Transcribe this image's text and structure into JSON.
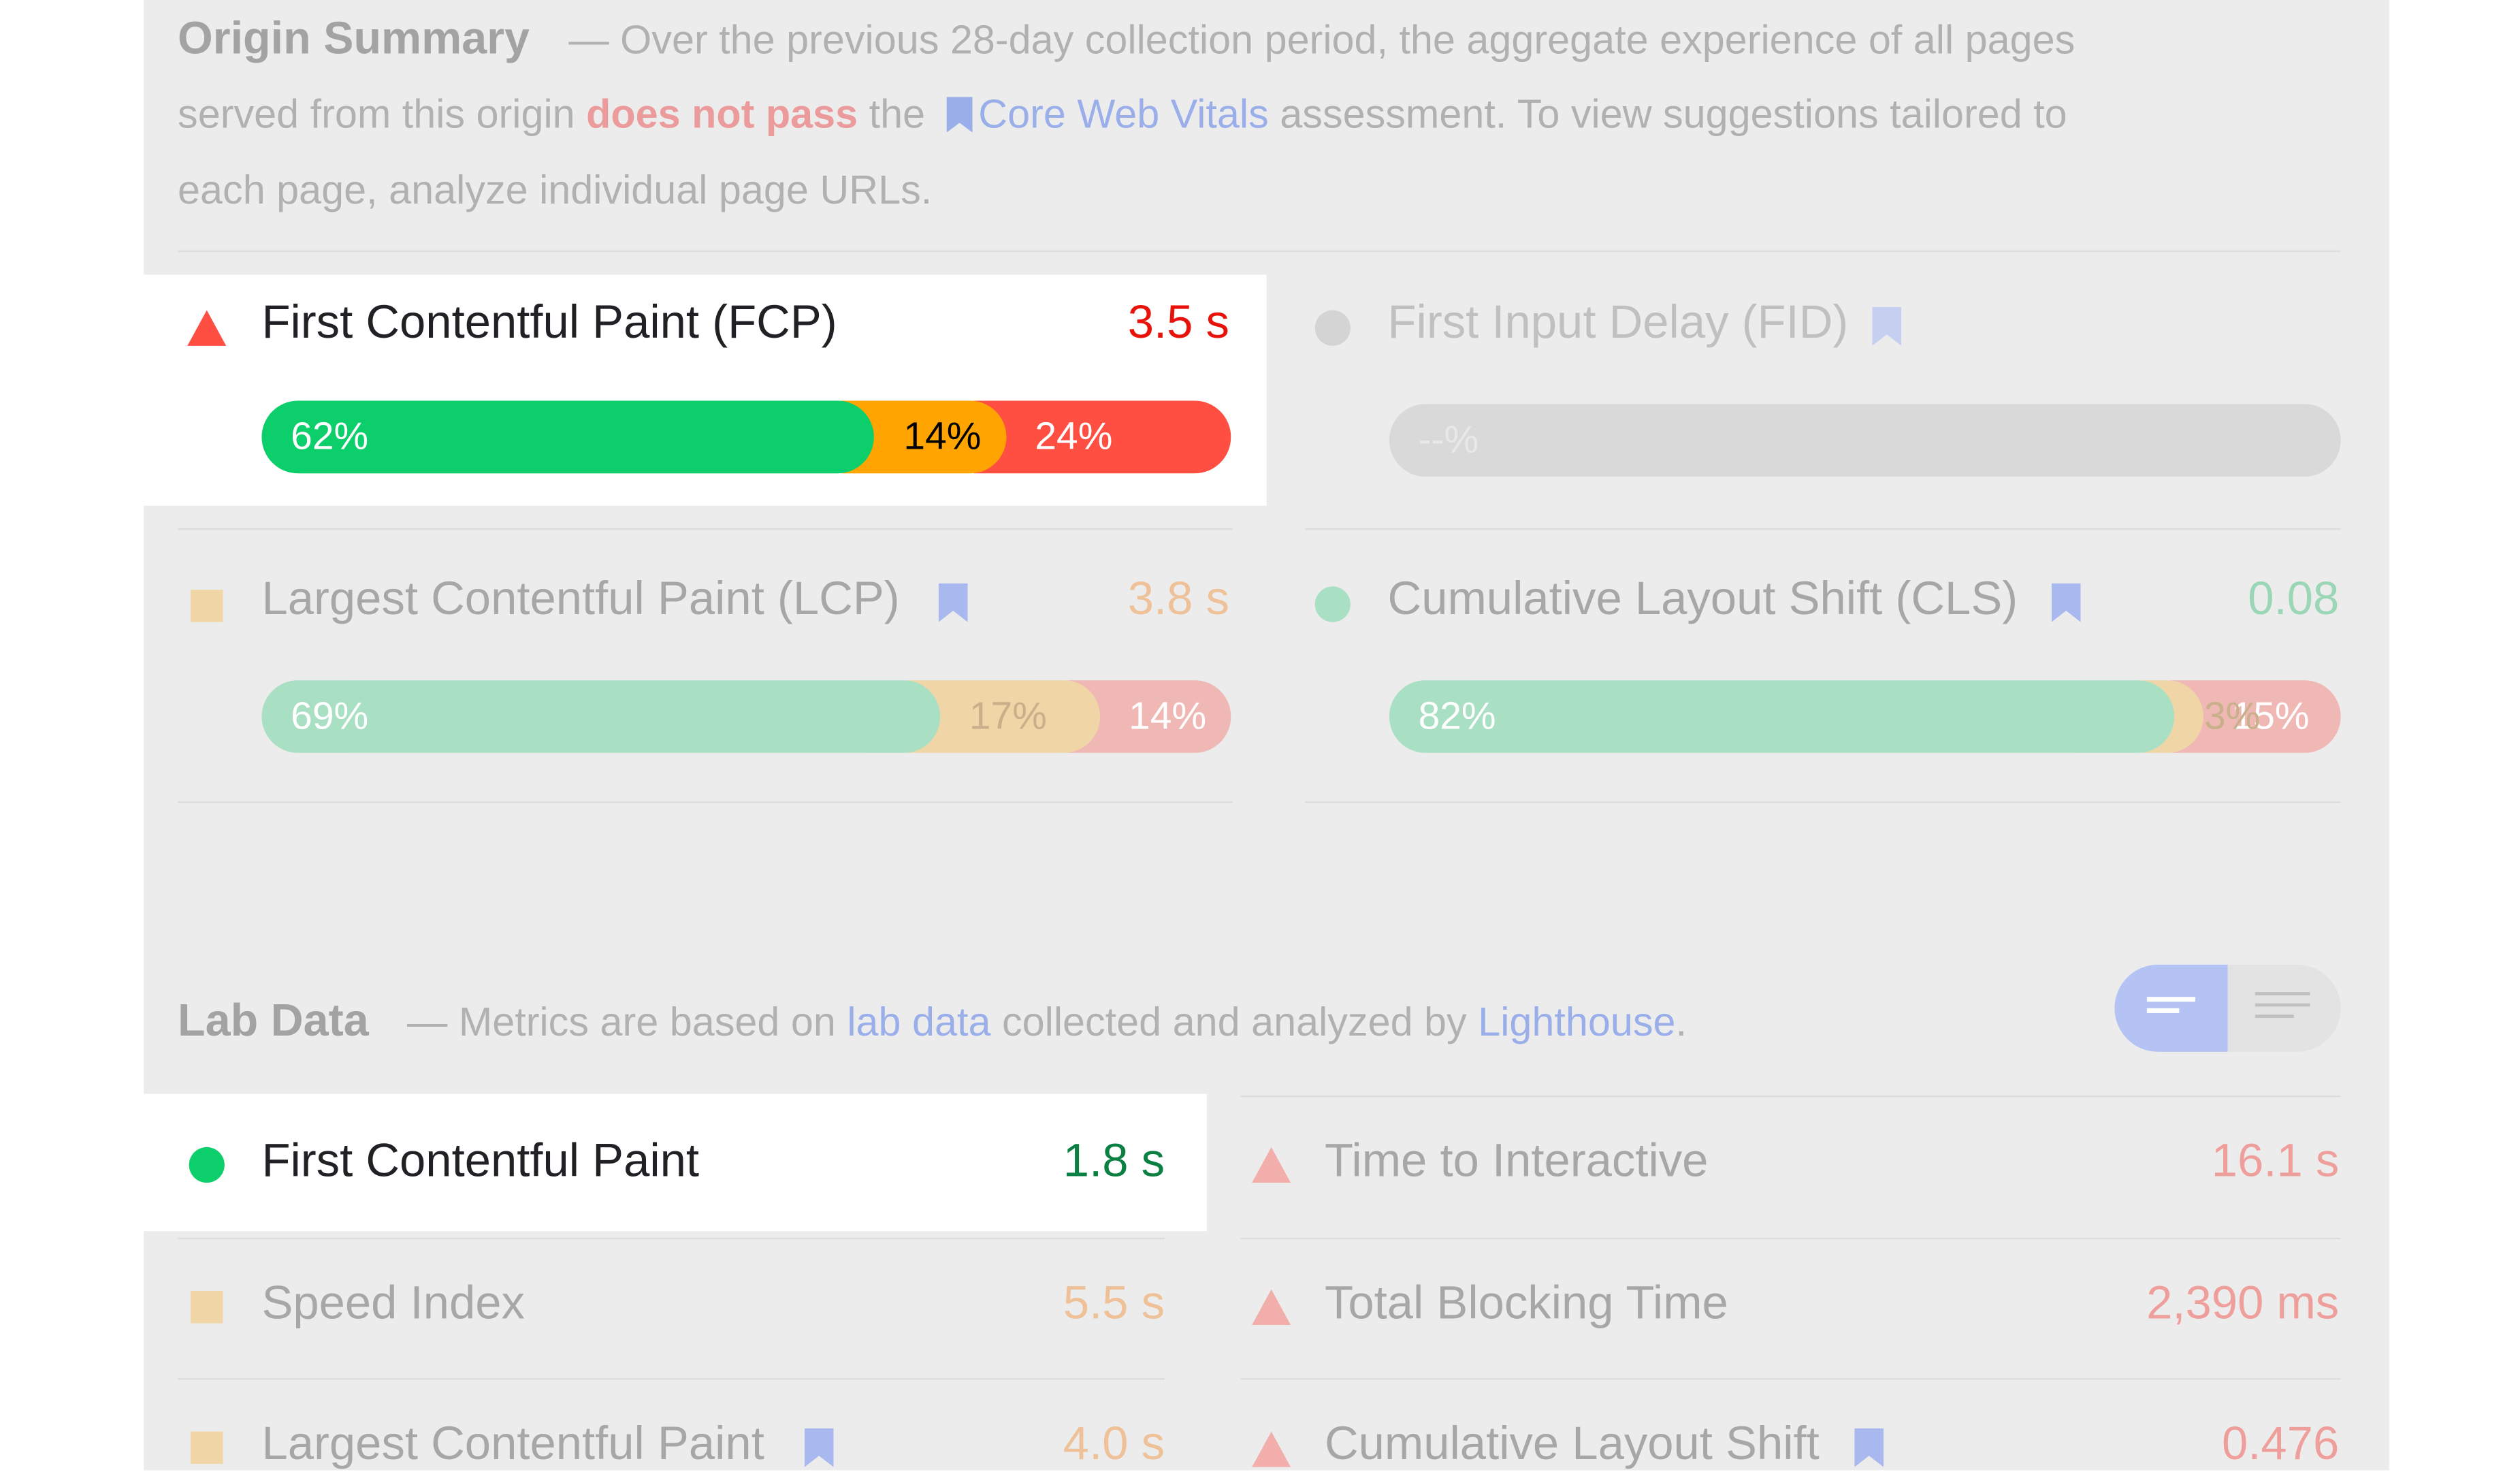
{
  "colors": {
    "pass": "#0cce6b",
    "average": "#ffa400",
    "fail": "#ff4e42",
    "fail_text": "#e8120b",
    "pass_text": "#0b8043",
    "link": "#9aaeea"
  },
  "origin_summary": {
    "title": "Origin Summary",
    "text_1": "— Over the previous 28-day collection period, the aggregate experience of all pages",
    "text_2a": "served from this origin",
    "fail_phrase": "does not pass",
    "text_2b": "the",
    "link_label": "Core Web Vitals",
    "text_2c": "assessment. To view suggestions tailored to",
    "text_3": "each page, analyze individual page URLs.",
    "metrics": [
      {
        "name": "First Contentful Paint (FCP)",
        "value": "3.5 s",
        "status": "fail",
        "icon": "warning-triangle-icon",
        "bar": [
          {
            "label": "62%",
            "kind": "good",
            "fraction": 0.62
          },
          {
            "label": "14%",
            "kind": "average",
            "fraction": 0.14
          },
          {
            "label": "24%",
            "kind": "poor",
            "fraction": 0.24
          }
        ]
      },
      {
        "name": "First Input Delay (FID)",
        "value": "",
        "status": "none",
        "icon": "circle-icon",
        "bar": [
          {
            "label": "--%",
            "kind": "empty",
            "fraction": 1.0
          }
        ]
      },
      {
        "name": "Largest Contentful Paint (LCP)",
        "value": "3.8 s",
        "status": "average",
        "icon": "square-icon",
        "bar": [
          {
            "label": "69%",
            "kind": "good",
            "fraction": 0.69
          },
          {
            "label": "17%",
            "kind": "average",
            "fraction": 0.17
          },
          {
            "label": "14%",
            "kind": "poor",
            "fraction": 0.14
          }
        ]
      },
      {
        "name": "Cumulative Layout Shift (CLS)",
        "value": "0.08",
        "status": "pass",
        "icon": "circle-icon",
        "bar": [
          {
            "label": "82%",
            "kind": "good",
            "fraction": 0.82
          },
          {
            "label": "3%",
            "kind": "average",
            "fraction": 0.03
          },
          {
            "label": "15%",
            "kind": "poor",
            "fraction": 0.15
          }
        ]
      }
    ]
  },
  "lab_data": {
    "title": "Lab Data",
    "text_1": "— Metrics are based on",
    "link_1": "lab data",
    "text_2": "collected and analyzed by",
    "link_2": "Lighthouse",
    "text_3": ".",
    "toggle": {
      "left_icon": "bar-view-icon",
      "right_icon": "list-view-icon"
    },
    "metrics": [
      {
        "name": "First Contentful Paint",
        "value": "1.8 s",
        "status": "pass",
        "icon": "circle-icon"
      },
      {
        "name": "Time to Interactive",
        "value": "16.1 s",
        "status": "fail",
        "icon": "warning-triangle-icon"
      },
      {
        "name": "Speed Index",
        "value": "5.5 s",
        "status": "average",
        "icon": "square-icon"
      },
      {
        "name": "Total Blocking Time",
        "value": "2,390 ms",
        "status": "fail",
        "icon": "warning-triangle-icon"
      },
      {
        "name": "Largest Contentful Paint",
        "value": "4.0 s",
        "status": "average",
        "icon": "square-icon"
      },
      {
        "name": "Cumulative Layout Shift",
        "value": "0.476",
        "status": "fail",
        "icon": "warning-triangle-icon"
      }
    ]
  }
}
